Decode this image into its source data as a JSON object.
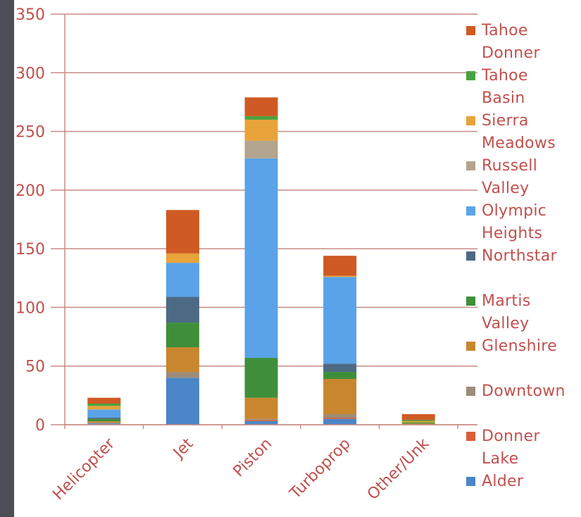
{
  "chart_data": {
    "type": "bar",
    "stacked": true,
    "categories": [
      "Helicopter",
      "Jet",
      "Piston",
      "Turboprop",
      "Other/Unk"
    ],
    "ylim": [
      0,
      350
    ],
    "yticks": [
      0,
      50,
      100,
      150,
      200,
      250,
      300,
      350
    ],
    "grid": true,
    "legend_position": "right",
    "series": [
      {
        "name": "Alder",
        "color": "#4a86c8",
        "values": [
          1,
          40,
          3,
          5,
          0
        ]
      },
      {
        "name": "Donner Lake",
        "color": "#d9603b",
        "values": [
          0,
          0,
          1,
          1,
          0
        ]
      },
      {
        "name": "Downtown",
        "color": "#9c8c78",
        "values": [
          1,
          5,
          1,
          3,
          0
        ]
      },
      {
        "name": "Glenshire",
        "color": "#c8862e",
        "values": [
          1,
          21,
          18,
          30,
          1
        ]
      },
      {
        "name": "Martis Valley",
        "color": "#3f8f3a",
        "values": [
          2,
          21,
          34,
          6,
          1
        ]
      },
      {
        "name": "Northstar",
        "color": "#4d6a85",
        "values": [
          1,
          22,
          0,
          7,
          0
        ]
      },
      {
        "name": "Olympic Heights",
        "color": "#5aa3e8",
        "values": [
          7,
          29,
          170,
          74,
          0
        ]
      },
      {
        "name": "Russell Valley",
        "color": "#b3a48e",
        "values": [
          0,
          0,
          15,
          0,
          0
        ]
      },
      {
        "name": "Sierra Meadows",
        "color": "#e8a33a",
        "values": [
          3,
          8,
          18,
          1,
          1
        ]
      },
      {
        "name": "Tahoe Basin",
        "color": "#4aa33e",
        "values": [
          2,
          0,
          3,
          0,
          1
        ]
      },
      {
        "name": "Tahoe Donner",
        "color": "#cf5a23",
        "values": [
          5,
          37,
          16,
          17,
          5
        ]
      }
    ]
  },
  "legend": [
    {
      "line1": "Tahoe",
      "line2": "Donner",
      "series": 10
    },
    {
      "line1": "Tahoe",
      "line2": "Basin",
      "series": 9
    },
    {
      "line1": "Sierra",
      "line2": "Meadows",
      "series": 8
    },
    {
      "line1": "Russell",
      "line2": "Valley",
      "series": 7
    },
    {
      "line1": "Olympic",
      "line2": "Heights",
      "series": 6
    },
    {
      "line1": "Northstar",
      "line2": "",
      "series": 5
    },
    {
      "line1": "Martis",
      "line2": "Valley",
      "series": 4
    },
    {
      "line1": "Glenshire",
      "line2": "",
      "series": 3
    },
    {
      "line1": "Downtown",
      "line2": "",
      "series": 2
    },
    {
      "line1": "Donner",
      "line2": "Lake",
      "series": 1
    },
    {
      "line1": "Alder",
      "line2": "",
      "series": 0
    }
  ]
}
